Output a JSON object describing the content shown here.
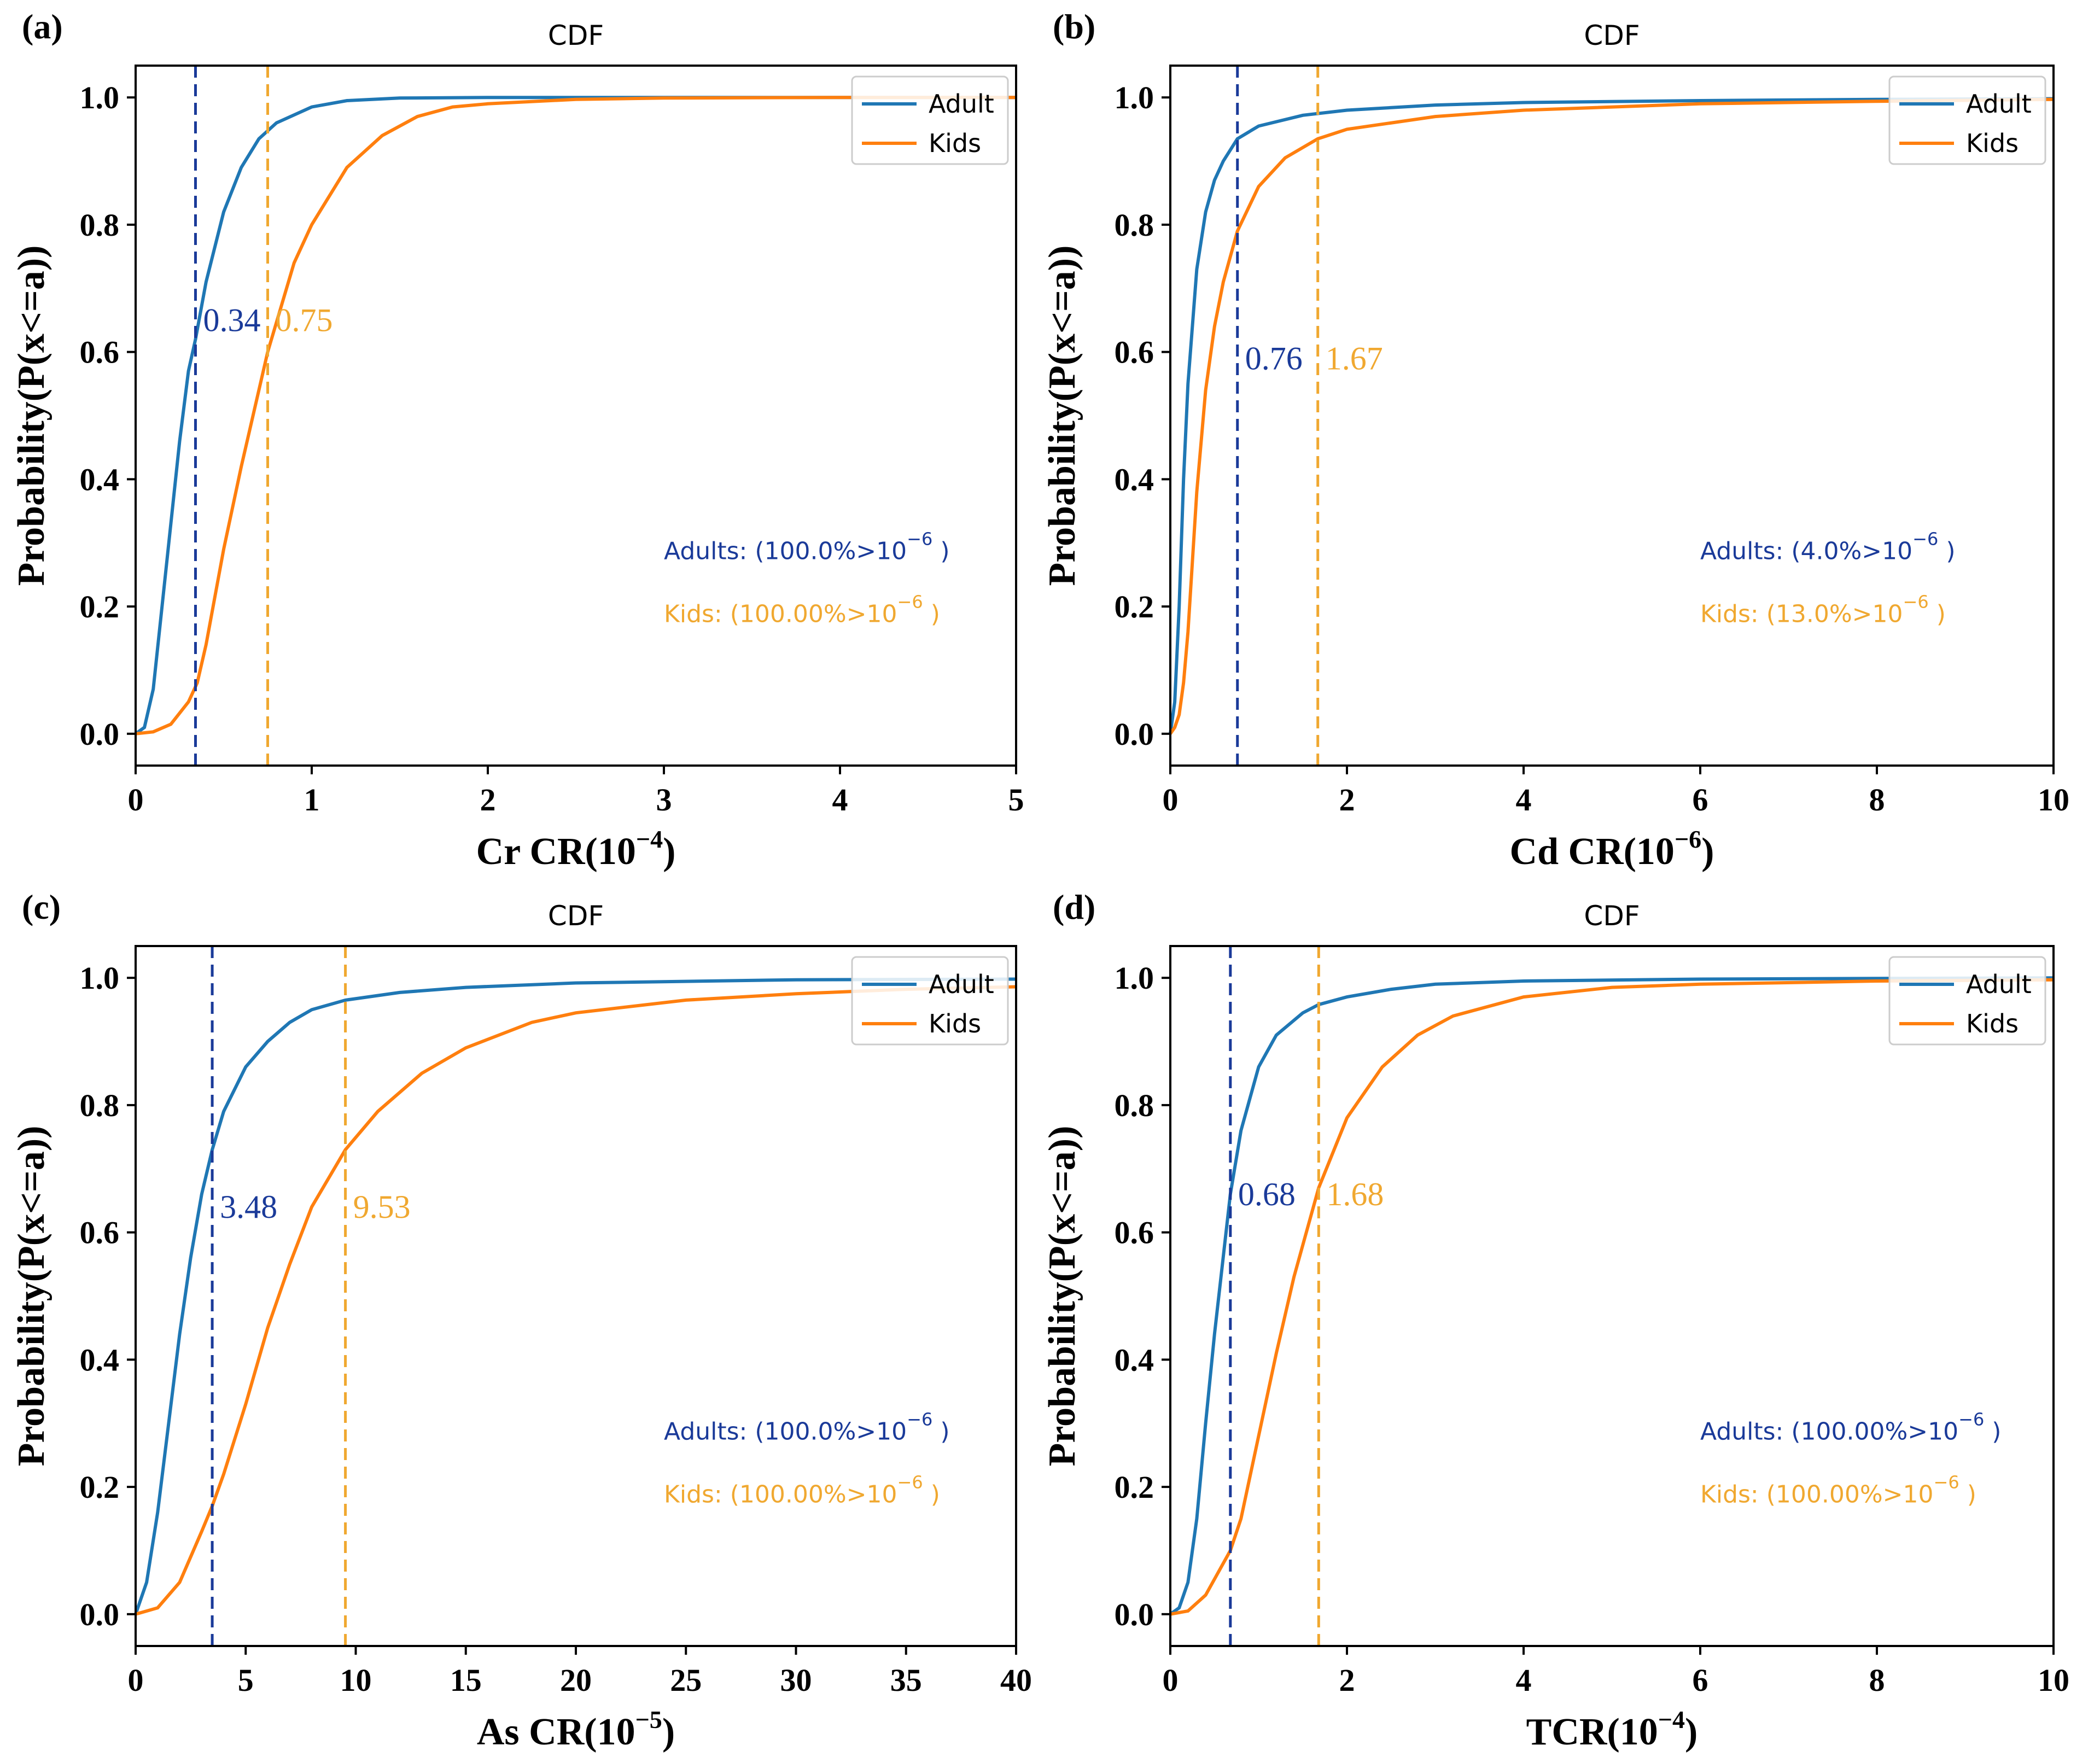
{
  "colors": {
    "adult_curve": "#1f77b4",
    "kids_curve": "#ff7f0e",
    "adult_marker": "#1a3a99",
    "kids_marker": "#f0a830"
  },
  "chart_data": [
    {
      "id": "a",
      "type": "line",
      "panel_label": "(a)",
      "title": "CDF",
      "xlabel_prefix": "Cr CR(10",
      "xlabel_exp": "−4",
      "xlabel_suffix": ")",
      "ylabel": "Probability(P(x<=a))",
      "xlim": [
        0,
        5
      ],
      "ylim": [
        -0.05,
        1.05
      ],
      "xticks": [
        0,
        1,
        2,
        3,
        4,
        5
      ],
      "yticks": [
        0.0,
        0.2,
        0.4,
        0.6,
        0.8,
        1.0
      ],
      "xtick_labels": [
        "0",
        "1",
        "2",
        "3",
        "4",
        "5"
      ],
      "ytick_labels": [
        "0.0",
        "0.2",
        "0.4",
        "0.6",
        "0.8",
        "1.0"
      ],
      "series": [
        {
          "name": "Adult",
          "x": [
            0,
            0.05,
            0.1,
            0.15,
            0.2,
            0.25,
            0.3,
            0.34,
            0.4,
            0.5,
            0.6,
            0.7,
            0.8,
            1.0,
            1.2,
            1.5,
            2,
            3,
            4,
            5
          ],
          "y": [
            0,
            0.01,
            0.07,
            0.2,
            0.33,
            0.46,
            0.57,
            0.62,
            0.71,
            0.82,
            0.89,
            0.935,
            0.96,
            0.985,
            0.995,
            0.999,
            1,
            1,
            1,
            1
          ]
        },
        {
          "name": "Kids",
          "x": [
            0,
            0.1,
            0.2,
            0.3,
            0.35,
            0.4,
            0.5,
            0.6,
            0.75,
            0.9,
            1.0,
            1.2,
            1.4,
            1.6,
            1.8,
            2.0,
            2.5,
            3,
            4,
            5
          ],
          "y": [
            0,
            0.003,
            0.015,
            0.05,
            0.08,
            0.14,
            0.29,
            0.42,
            0.6,
            0.74,
            0.8,
            0.89,
            0.94,
            0.97,
            0.985,
            0.99,
            0.997,
            0.999,
            1,
            1
          ]
        }
      ],
      "thresholds": [
        {
          "name": "Adult",
          "x": 0.34,
          "label": "0.34",
          "label_y": 0.65
        },
        {
          "name": "Kids",
          "x": 0.75,
          "label": "0.75",
          "label_y": 0.65
        }
      ],
      "notes": [
        {
          "who": "adult",
          "prefix": "Adults: (100.0%>10",
          "exp": "−6",
          "suffix": " )"
        },
        {
          "who": "kids",
          "prefix": "Kids: (100.00%>10",
          "exp": "−6",
          "suffix": " )"
        }
      ],
      "legend": [
        "Adult",
        "Kids"
      ]
    },
    {
      "id": "b",
      "type": "line",
      "panel_label": "(b)",
      "title": "CDF",
      "xlabel_prefix": "Cd CR(10",
      "xlabel_exp": "−6",
      "xlabel_suffix": ")",
      "ylabel": "Probability(P(x<=a))",
      "xlim": [
        0,
        10
      ],
      "ylim": [
        -0.05,
        1.05
      ],
      "xticks": [
        0,
        2,
        4,
        6,
        8,
        10
      ],
      "yticks": [
        0.0,
        0.2,
        0.4,
        0.6,
        0.8,
        1.0
      ],
      "xtick_labels": [
        "0",
        "2",
        "4",
        "6",
        "8",
        "10"
      ],
      "ytick_labels": [
        "0.0",
        "0.2",
        "0.4",
        "0.6",
        "0.8",
        "1.0"
      ],
      "series": [
        {
          "name": "Adult",
          "x": [
            0,
            0.05,
            0.1,
            0.15,
            0.2,
            0.3,
            0.4,
            0.5,
            0.6,
            0.76,
            1.0,
            1.5,
            2,
            3,
            4,
            6,
            8,
            10
          ],
          "y": [
            0,
            0.05,
            0.2,
            0.4,
            0.55,
            0.73,
            0.82,
            0.87,
            0.9,
            0.935,
            0.955,
            0.972,
            0.98,
            0.988,
            0.992,
            0.995,
            0.997,
            0.998
          ]
        },
        {
          "name": "Kids",
          "x": [
            0,
            0.05,
            0.1,
            0.15,
            0.2,
            0.3,
            0.4,
            0.5,
            0.6,
            0.76,
            1.0,
            1.3,
            1.67,
            2,
            3,
            4,
            6,
            8,
            10
          ],
          "y": [
            0,
            0.01,
            0.03,
            0.08,
            0.16,
            0.38,
            0.54,
            0.64,
            0.71,
            0.79,
            0.86,
            0.905,
            0.935,
            0.95,
            0.97,
            0.98,
            0.99,
            0.994,
            0.997
          ]
        }
      ],
      "thresholds": [
        {
          "name": "Adult",
          "x": 0.76,
          "label": "0.76",
          "label_y": 0.59
        },
        {
          "name": "Kids",
          "x": 1.67,
          "label": "1.67",
          "label_y": 0.59
        }
      ],
      "notes": [
        {
          "who": "adult",
          "prefix": "Adults: (4.0%>10",
          "exp": "−6",
          "suffix": " )"
        },
        {
          "who": "kids",
          "prefix": "Kids: (13.0%>10",
          "exp": "−6",
          "suffix": " )"
        }
      ],
      "legend": [
        "Adult",
        "Kids"
      ]
    },
    {
      "id": "c",
      "type": "line",
      "panel_label": "(c)",
      "title": "CDF",
      "xlabel_prefix": "As CR(10",
      "xlabel_exp": "−5",
      "xlabel_suffix": ")",
      "ylabel": "Probability(P(x<=a))",
      "xlim": [
        0,
        40
      ],
      "ylim": [
        -0.05,
        1.05
      ],
      "xticks": [
        0,
        5,
        10,
        15,
        20,
        25,
        30,
        35,
        40
      ],
      "yticks": [
        0.0,
        0.2,
        0.4,
        0.6,
        0.8,
        1.0
      ],
      "xtick_labels": [
        "0",
        "5",
        "10",
        "15",
        "20",
        "25",
        "30",
        "35",
        "40"
      ],
      "ytick_labels": [
        "0.0",
        "0.2",
        "0.4",
        "0.6",
        "0.8",
        "1.0"
      ],
      "series": [
        {
          "name": "Adult",
          "x": [
            0,
            0.5,
            1,
            1.5,
            2,
            2.5,
            3,
            3.48,
            4,
            5,
            6,
            7,
            8,
            9.53,
            12,
            15,
            20,
            30,
            40
          ],
          "y": [
            0,
            0.05,
            0.16,
            0.3,
            0.44,
            0.56,
            0.66,
            0.73,
            0.79,
            0.86,
            0.9,
            0.93,
            0.95,
            0.965,
            0.977,
            0.985,
            0.992,
            0.997,
            0.998
          ]
        },
        {
          "name": "Kids",
          "x": [
            0,
            1,
            2,
            3,
            3.48,
            4,
            5,
            6,
            7,
            8,
            9.53,
            11,
            13,
            15,
            18,
            20,
            25,
            30,
            35,
            40
          ],
          "y": [
            0,
            0.01,
            0.05,
            0.13,
            0.17,
            0.22,
            0.33,
            0.45,
            0.55,
            0.64,
            0.73,
            0.79,
            0.85,
            0.89,
            0.93,
            0.945,
            0.965,
            0.975,
            0.982,
            0.986
          ]
        }
      ],
      "thresholds": [
        {
          "name": "Adult",
          "x": 3.48,
          "label": "3.48",
          "label_y": 0.64
        },
        {
          "name": "Kids",
          "x": 9.53,
          "label": "9.53",
          "label_y": 0.64
        }
      ],
      "notes": [
        {
          "who": "adult",
          "prefix": "Adults: (100.0%>10",
          "exp": "−6",
          "suffix": " )"
        },
        {
          "who": "kids",
          "prefix": "Kids: (100.00%>10",
          "exp": "−6",
          "suffix": " )"
        }
      ],
      "legend": [
        "Adult",
        "Kids"
      ]
    },
    {
      "id": "d",
      "type": "line",
      "panel_label": "(d)",
      "title": "CDF",
      "xlabel_prefix": "TCR(10",
      "xlabel_exp": "−4",
      "xlabel_suffix": ")",
      "ylabel": "Probability(P(x<=a))",
      "xlim": [
        0,
        10
      ],
      "ylim": [
        -0.05,
        1.05
      ],
      "xticks": [
        0,
        2,
        4,
        6,
        8,
        10
      ],
      "yticks": [
        0.0,
        0.2,
        0.4,
        0.6,
        0.8,
        1.0
      ],
      "xtick_labels": [
        "0",
        "2",
        "4",
        "6",
        "8",
        "10"
      ],
      "ytick_labels": [
        "0.0",
        "0.2",
        "0.4",
        "0.6",
        "0.8",
        "1.0"
      ],
      "series": [
        {
          "name": "Adult",
          "x": [
            0,
            0.1,
            0.2,
            0.3,
            0.4,
            0.5,
            0.68,
            0.8,
            1.0,
            1.2,
            1.5,
            1.68,
            2.0,
            2.5,
            3,
            4,
            6,
            8,
            10
          ],
          "y": [
            0,
            0.01,
            0.05,
            0.15,
            0.3,
            0.44,
            0.66,
            0.76,
            0.86,
            0.91,
            0.945,
            0.958,
            0.97,
            0.982,
            0.99,
            0.995,
            0.998,
            0.999,
            1
          ]
        },
        {
          "name": "Kids",
          "x": [
            0,
            0.2,
            0.4,
            0.6,
            0.68,
            0.8,
            1.0,
            1.2,
            1.4,
            1.68,
            2.0,
            2.4,
            2.8,
            3.2,
            4,
            5,
            6,
            8,
            10
          ],
          "y": [
            0,
            0.005,
            0.03,
            0.08,
            0.1,
            0.15,
            0.28,
            0.41,
            0.53,
            0.67,
            0.78,
            0.86,
            0.91,
            0.94,
            0.97,
            0.985,
            0.99,
            0.995,
            0.997
          ]
        }
      ],
      "thresholds": [
        {
          "name": "Adult",
          "x": 0.68,
          "label": "0.68",
          "label_y": 0.66
        },
        {
          "name": "Kids",
          "x": 1.68,
          "label": "1.68",
          "label_y": 0.66
        }
      ],
      "notes": [
        {
          "who": "adult",
          "prefix": "Adults: (100.00%>10",
          "exp": "−6",
          "suffix": " )"
        },
        {
          "who": "kids",
          "prefix": "Kids: (100.00%>10",
          "exp": "−6",
          "suffix": " )"
        }
      ],
      "legend": [
        "Adult",
        "Kids"
      ]
    }
  ]
}
